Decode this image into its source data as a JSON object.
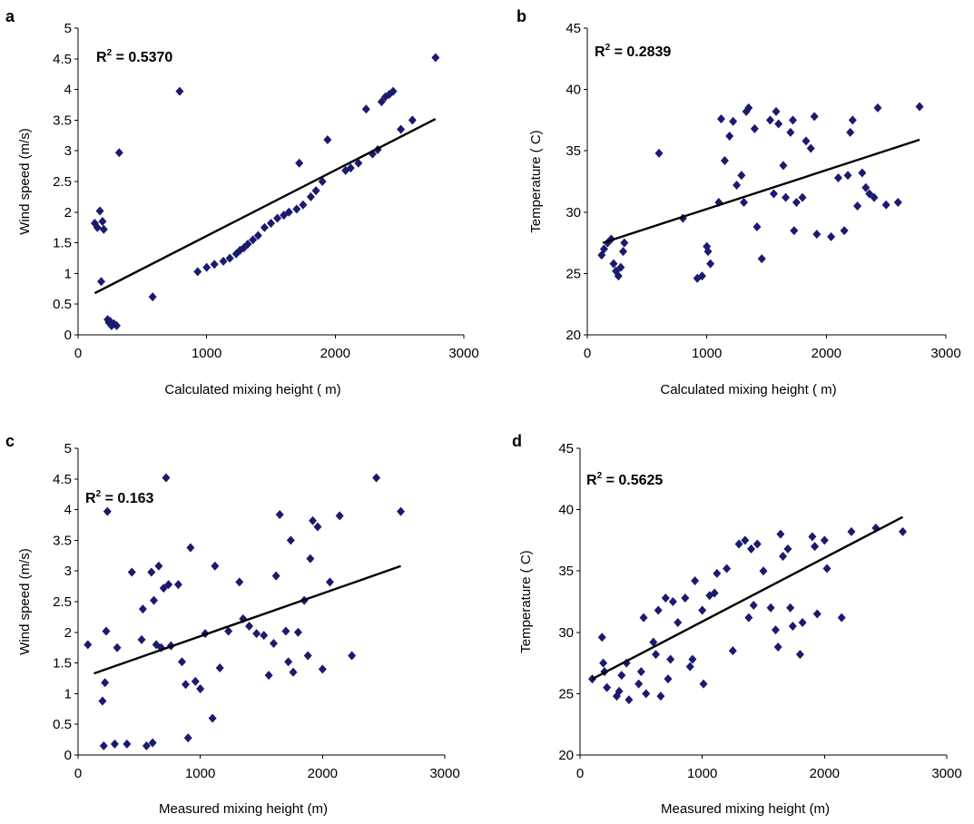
{
  "chart_data": [
    {
      "panel": "a",
      "type": "scatter",
      "xlabel": "Calculated mixing height ( m)",
      "ylabel": "Wind speed (m/s)",
      "annotation": "R² = 0.5370",
      "r2_label": "R",
      "r2_exp": "2",
      "r2_value": " = 0.5370",
      "xlim": [
        0,
        3000
      ],
      "ylim": [
        0,
        5
      ],
      "xticks": [
        0,
        1000,
        2000,
        3000
      ],
      "yticks": [
        0,
        0.5,
        1,
        1.5,
        2,
        2.5,
        3,
        3.5,
        4,
        4.5,
        5
      ],
      "trendline": {
        "x": [
          130,
          2780
        ],
        "y": [
          0.68,
          3.52
        ]
      },
      "points": [
        [
          130,
          1.82
        ],
        [
          150,
          1.75
        ],
        [
          170,
          2.02
        ],
        [
          190,
          1.85
        ],
        [
          200,
          1.72
        ],
        [
          180,
          0.87
        ],
        [
          230,
          0.25
        ],
        [
          240,
          0.2
        ],
        [
          260,
          0.15
        ],
        [
          250,
          0.22
        ],
        [
          280,
          0.18
        ],
        [
          300,
          0.15
        ],
        [
          320,
          2.97
        ],
        [
          580,
          0.62
        ],
        [
          790,
          3.97
        ],
        [
          930,
          1.03
        ],
        [
          1000,
          1.1
        ],
        [
          1060,
          1.15
        ],
        [
          1130,
          1.2
        ],
        [
          1180,
          1.25
        ],
        [
          1230,
          1.32
        ],
        [
          1260,
          1.38
        ],
        [
          1290,
          1.42
        ],
        [
          1320,
          1.48
        ],
        [
          1360,
          1.55
        ],
        [
          1400,
          1.62
        ],
        [
          1450,
          1.75
        ],
        [
          1500,
          1.82
        ],
        [
          1550,
          1.9
        ],
        [
          1600,
          1.95
        ],
        [
          1640,
          2.0
        ],
        [
          1700,
          2.05
        ],
        [
          1750,
          2.12
        ],
        [
          1720,
          2.8
        ],
        [
          1810,
          2.25
        ],
        [
          1850,
          2.35
        ],
        [
          1900,
          2.5
        ],
        [
          1940,
          3.18
        ],
        [
          2080,
          2.68
        ],
        [
          2120,
          2.72
        ],
        [
          2180,
          2.8
        ],
        [
          2240,
          3.68
        ],
        [
          2290,
          2.95
        ],
        [
          2330,
          3.02
        ],
        [
          2360,
          3.8
        ],
        [
          2390,
          3.88
        ],
        [
          2420,
          3.92
        ],
        [
          2450,
          3.97
        ],
        [
          2510,
          3.35
        ],
        [
          2600,
          3.5
        ],
        [
          2780,
          4.52
        ]
      ]
    },
    {
      "panel": "b",
      "type": "scatter",
      "xlabel": "Calculated mixing height ( m)",
      "ylabel": "Temperature ( C)",
      "annotation": "R² = 0.2839",
      "r2_label": "R",
      "r2_exp": "2",
      "r2_value": " = 0.2839",
      "xlim": [
        0,
        3000
      ],
      "ylim": [
        20,
        45
      ],
      "xticks": [
        0,
        1000,
        2000,
        3000
      ],
      "yticks": [
        20,
        25,
        30,
        35,
        40,
        45
      ],
      "trendline": {
        "x": [
          130,
          2780
        ],
        "y": [
          27.5,
          35.9
        ]
      },
      "points": [
        [
          120,
          26.5
        ],
        [
          140,
          27.0
        ],
        [
          170,
          27.5
        ],
        [
          200,
          27.8
        ],
        [
          220,
          25.8
        ],
        [
          240,
          25.2
        ],
        [
          260,
          24.8
        ],
        [
          280,
          25.5
        ],
        [
          300,
          26.8
        ],
        [
          310,
          27.5
        ],
        [
          600,
          34.8
        ],
        [
          800,
          29.5
        ],
        [
          920,
          24.6
        ],
        [
          960,
          24.8
        ],
        [
          1000,
          27.2
        ],
        [
          1010,
          26.8
        ],
        [
          1030,
          25.8
        ],
        [
          1100,
          30.8
        ],
        [
          1120,
          37.6
        ],
        [
          1150,
          34.2
        ],
        [
          1190,
          36.2
        ],
        [
          1220,
          37.4
        ],
        [
          1250,
          32.2
        ],
        [
          1290,
          33.0
        ],
        [
          1310,
          30.8
        ],
        [
          1330,
          38.2
        ],
        [
          1350,
          38.5
        ],
        [
          1400,
          36.8
        ],
        [
          1420,
          28.8
        ],
        [
          1460,
          26.2
        ],
        [
          1530,
          37.5
        ],
        [
          1560,
          31.5
        ],
        [
          1580,
          38.2
        ],
        [
          1600,
          37.2
        ],
        [
          1640,
          33.8
        ],
        [
          1660,
          31.2
        ],
        [
          1700,
          36.5
        ],
        [
          1720,
          37.5
        ],
        [
          1730,
          28.5
        ],
        [
          1750,
          30.8
        ],
        [
          1800,
          31.2
        ],
        [
          1830,
          35.8
        ],
        [
          1870,
          35.2
        ],
        [
          1900,
          37.8
        ],
        [
          1920,
          28.2
        ],
        [
          2040,
          28.0
        ],
        [
          2100,
          32.8
        ],
        [
          2150,
          28.5
        ],
        [
          2180,
          33.0
        ],
        [
          2200,
          36.5
        ],
        [
          2220,
          37.5
        ],
        [
          2260,
          30.5
        ],
        [
          2300,
          33.2
        ],
        [
          2330,
          32.0
        ],
        [
          2360,
          31.5
        ],
        [
          2400,
          31.2
        ],
        [
          2430,
          38.5
        ],
        [
          2500,
          30.6
        ],
        [
          2600,
          30.8
        ],
        [
          2780,
          38.6
        ]
      ]
    },
    {
      "panel": "c",
      "type": "scatter",
      "xlabel": "Measured mixing height (m)",
      "ylabel": "Wind speed (m/s)",
      "annotation": "R² = 0.163",
      "r2_label": "R",
      "r2_exp": "2",
      "r2_value": " = 0.163",
      "xlim": [
        0,
        3000
      ],
      "ylim": [
        0,
        5
      ],
      "xticks": [
        0,
        1000,
        2000,
        3000
      ],
      "yticks": [
        0,
        0.5,
        1,
        1.5,
        2,
        2.5,
        3,
        3.5,
        4,
        4.5,
        5
      ],
      "trendline": {
        "x": [
          130,
          2640
        ],
        "y": [
          1.33,
          3.08
        ]
      },
      "points": [
        [
          80,
          1.8
        ],
        [
          200,
          0.88
        ],
        [
          220,
          1.18
        ],
        [
          230,
          2.02
        ],
        [
          240,
          3.97
        ],
        [
          210,
          0.15
        ],
        [
          300,
          0.18
        ],
        [
          320,
          1.75
        ],
        [
          400,
          0.18
        ],
        [
          440,
          2.98
        ],
        [
          520,
          1.88
        ],
        [
          530,
          2.38
        ],
        [
          560,
          0.15
        ],
        [
          600,
          2.98
        ],
        [
          610,
          0.2
        ],
        [
          620,
          2.52
        ],
        [
          640,
          1.8
        ],
        [
          660,
          3.08
        ],
        [
          680,
          1.75
        ],
        [
          700,
          2.72
        ],
        [
          720,
          4.52
        ],
        [
          740,
          2.78
        ],
        [
          760,
          1.78
        ],
        [
          820,
          2.78
        ],
        [
          850,
          1.52
        ],
        [
          880,
          1.15
        ],
        [
          900,
          0.28
        ],
        [
          920,
          3.38
        ],
        [
          960,
          1.2
        ],
        [
          1000,
          1.08
        ],
        [
          1040,
          1.98
        ],
        [
          1100,
          0.6
        ],
        [
          1120,
          3.08
        ],
        [
          1160,
          1.42
        ],
        [
          1230,
          2.02
        ],
        [
          1320,
          2.82
        ],
        [
          1350,
          2.22
        ],
        [
          1400,
          2.1
        ],
        [
          1460,
          1.98
        ],
        [
          1520,
          1.95
        ],
        [
          1560,
          1.3
        ],
        [
          1600,
          1.82
        ],
        [
          1620,
          2.92
        ],
        [
          1650,
          3.92
        ],
        [
          1700,
          2.02
        ],
        [
          1720,
          1.52
        ],
        [
          1740,
          3.5
        ],
        [
          1760,
          1.35
        ],
        [
          1800,
          2.0
        ],
        [
          1850,
          2.52
        ],
        [
          1880,
          1.62
        ],
        [
          1900,
          3.2
        ],
        [
          1920,
          3.82
        ],
        [
          1960,
          3.72
        ],
        [
          2000,
          1.4
        ],
        [
          2060,
          2.82
        ],
        [
          2140,
          3.9
        ],
        [
          2240,
          1.62
        ],
        [
          2440,
          4.52
        ],
        [
          2640,
          3.97
        ]
      ]
    },
    {
      "panel": "d",
      "type": "scatter",
      "xlabel": "Measured mixing height (m)",
      "ylabel": "Temperature ( C)",
      "annotation": "R² = 0.5625",
      "r2_label": "R",
      "r2_exp": "2",
      "r2_value": " = 0.5625",
      "xlim": [
        0,
        3000
      ],
      "ylim": [
        20,
        45
      ],
      "xticks": [
        0,
        1000,
        2000,
        3000
      ],
      "yticks": [
        20,
        25,
        30,
        35,
        40,
        45
      ],
      "trendline": {
        "x": [
          100,
          2640
        ],
        "y": [
          26.2,
          39.4
        ]
      },
      "points": [
        [
          100,
          26.2
        ],
        [
          180,
          29.6
        ],
        [
          190,
          27.5
        ],
        [
          200,
          26.8
        ],
        [
          220,
          25.5
        ],
        [
          300,
          24.8
        ],
        [
          320,
          25.2
        ],
        [
          340,
          26.5
        ],
        [
          380,
          27.5
        ],
        [
          400,
          24.5
        ],
        [
          480,
          25.8
        ],
        [
          500,
          26.8
        ],
        [
          520,
          31.2
        ],
        [
          540,
          25.0
        ],
        [
          600,
          29.2
        ],
        [
          620,
          28.2
        ],
        [
          640,
          31.8
        ],
        [
          660,
          24.8
        ],
        [
          700,
          32.8
        ],
        [
          720,
          26.2
        ],
        [
          740,
          27.8
        ],
        [
          760,
          32.5
        ],
        [
          800,
          30.8
        ],
        [
          860,
          32.8
        ],
        [
          900,
          27.2
        ],
        [
          920,
          27.8
        ],
        [
          940,
          34.2
        ],
        [
          1000,
          31.8
        ],
        [
          1010,
          25.8
        ],
        [
          1060,
          33.0
        ],
        [
          1100,
          33.2
        ],
        [
          1120,
          34.8
        ],
        [
          1200,
          35.2
        ],
        [
          1250,
          28.5
        ],
        [
          1300,
          37.2
        ],
        [
          1350,
          37.5
        ],
        [
          1380,
          31.2
        ],
        [
          1400,
          36.8
        ],
        [
          1420,
          32.2
        ],
        [
          1450,
          37.2
        ],
        [
          1500,
          35.0
        ],
        [
          1560,
          32.0
        ],
        [
          1600,
          30.2
        ],
        [
          1620,
          28.8
        ],
        [
          1640,
          38.0
        ],
        [
          1660,
          36.2
        ],
        [
          1700,
          36.8
        ],
        [
          1720,
          32.0
        ],
        [
          1740,
          30.5
        ],
        [
          1800,
          28.2
        ],
        [
          1820,
          30.8
        ],
        [
          1900,
          37.8
        ],
        [
          1920,
          37.0
        ],
        [
          1940,
          31.5
        ],
        [
          2000,
          37.5
        ],
        [
          2020,
          35.2
        ],
        [
          2140,
          31.2
        ],
        [
          2220,
          38.2
        ],
        [
          2420,
          38.5
        ],
        [
          2640,
          38.2
        ]
      ]
    }
  ]
}
